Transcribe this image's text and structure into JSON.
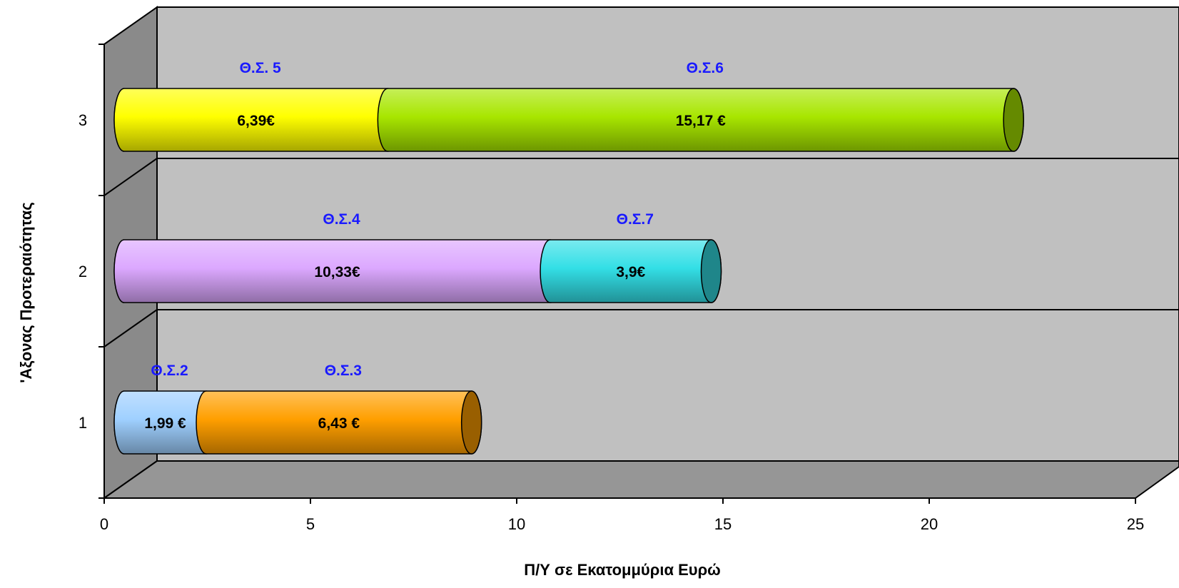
{
  "chart_data": {
    "type": "bar",
    "orientation": "horizontal",
    "stacked": true,
    "style": "3d-cylinder",
    "title": "",
    "xlabel": "Π/Υ σε Εκατομμύρια Ευρώ",
    "ylabel": "'Αξονας Προτεραιότητας",
    "xlim": [
      0,
      25
    ],
    "x_ticks": [
      "0",
      "5",
      "10",
      "15",
      "20",
      "25"
    ],
    "categories": [
      "1",
      "2",
      "3"
    ],
    "grid": true,
    "legend": "none",
    "bars": [
      {
        "category": "1",
        "segments": [
          {
            "name": "Θ.Σ.2",
            "value": 1.99,
            "label": "1,99 €",
            "color": "#9fd0ff"
          },
          {
            "name": "Θ.Σ.3",
            "value": 6.43,
            "label": "6,43 €",
            "color": "#ff9f00"
          }
        ]
      },
      {
        "category": "2",
        "segments": [
          {
            "name": "Θ.Σ.4",
            "value": 10.33,
            "label": "10,33€",
            "color": "#dca8ff"
          },
          {
            "name": "Θ.Σ.7",
            "value": 3.9,
            "label": "3,9€",
            "color": "#33dfe6"
          }
        ]
      },
      {
        "category": "3",
        "segments": [
          {
            "name": "Θ.Σ. 5",
            "value": 6.39,
            "label": "6,39€",
            "color": "#ffff00"
          },
          {
            "name": "Θ.Σ.6",
            "value": 15.17,
            "label": "15,17 €",
            "color": "#a8e600"
          }
        ]
      }
    ],
    "colors": {
      "back_wall": "#c0c0c0",
      "side_wall": "#8a8a8a",
      "floor": "#969696",
      "series_label": "#1a1aff"
    }
  }
}
